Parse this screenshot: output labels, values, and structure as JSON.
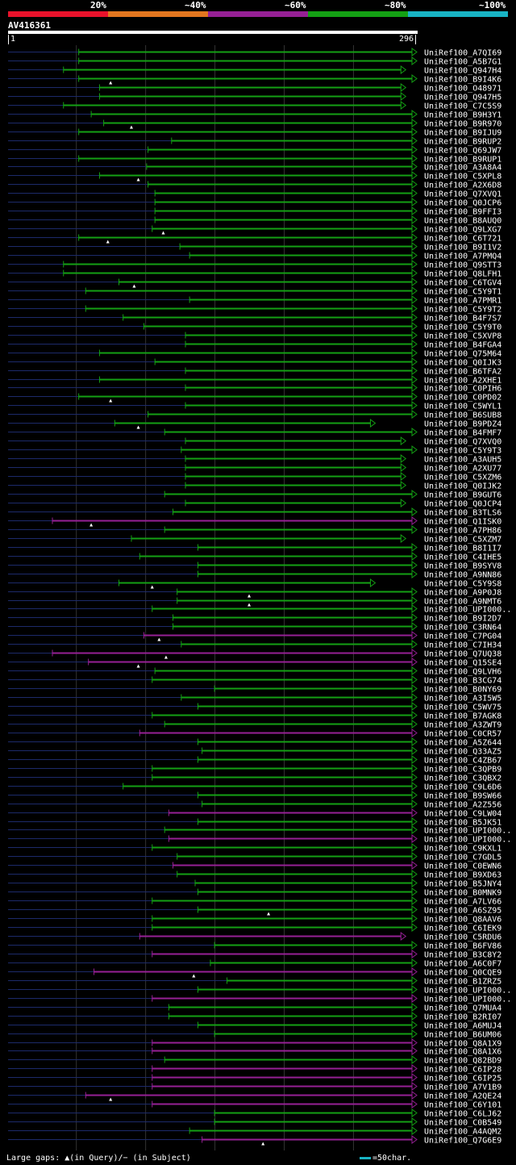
{
  "legend": {
    "labels": [
      "20%",
      "~40%",
      "~60%",
      "~80%",
      "~100%"
    ],
    "colors": [
      "#e8122b",
      "#e2761f",
      "#962095",
      "#14a014",
      "#18b3c4"
    ]
  },
  "query": {
    "id": "AV416361",
    "start": "1",
    "end": "296"
  },
  "footer": {
    "gaps_text": "Large gaps: ▲(in Query)/− (in Subject)",
    "scale_text": "=50char."
  },
  "chart_data": {
    "type": "alignment",
    "title": "AV416361",
    "query_length": 296,
    "axis": {
      "min": 1,
      "max": 296
    },
    "alignments": [
      {
        "name": "UniRef100_A7QI69",
        "start": 52,
        "end": 296,
        "color": "green",
        "arrow": "right"
      },
      {
        "name": "UniRef100_A5B7G1",
        "start": 52,
        "end": 296,
        "color": "green",
        "arrow": "right"
      },
      {
        "name": "UniRef100_Q947H4",
        "start": 41,
        "end": 288,
        "color": "green",
        "arrow": "right"
      },
      {
        "name": "UniRef100_B9I4K6",
        "start": 52,
        "end": 296,
        "color": "green",
        "arrow": "right",
        "gap": 75
      },
      {
        "name": "UniRef100_O48971",
        "start": 67,
        "end": 288,
        "color": "green",
        "arrow": "right"
      },
      {
        "name": "UniRef100_Q947H5",
        "start": 67,
        "end": 288,
        "color": "green",
        "arrow": "right"
      },
      {
        "name": "UniRef100_C7C5S9",
        "start": 41,
        "end": 288,
        "color": "green",
        "arrow": "right"
      },
      {
        "name": "UniRef100_B9H3Y1",
        "start": 61,
        "end": 296,
        "color": "green",
        "arrow": "right"
      },
      {
        "name": "UniRef100_B9R970",
        "start": 70,
        "end": 296,
        "color": "green",
        "arrow": "right",
        "gap": 90
      },
      {
        "name": "UniRef100_B9IJU9",
        "start": 52,
        "end": 296,
        "color": "green",
        "arrow": "right"
      },
      {
        "name": "UniRef100_B9RUP2",
        "start": 119,
        "end": 296,
        "color": "green",
        "arrow": "right"
      },
      {
        "name": "UniRef100_Q69JW7",
        "start": 102,
        "end": 296,
        "color": "green",
        "arrow": "right"
      },
      {
        "name": "UniRef100_B9RUP1",
        "start": 52,
        "end": 296,
        "color": "green",
        "arrow": "right"
      },
      {
        "name": "UniRef100_A3A8A4",
        "start": 101,
        "end": 296,
        "color": "green",
        "arrow": "right"
      },
      {
        "name": "UniRef100_C5XPL8",
        "start": 67,
        "end": 296,
        "color": "green",
        "arrow": "right",
        "gap": 95
      },
      {
        "name": "UniRef100_A2X6D8",
        "start": 102,
        "end": 296,
        "color": "green",
        "arrow": "right"
      },
      {
        "name": "UniRef100_Q7XVQ1",
        "start": 107,
        "end": 296,
        "color": "green",
        "arrow": "right"
      },
      {
        "name": "UniRef100_Q0JCP6",
        "start": 107,
        "end": 296,
        "color": "green",
        "arrow": "right"
      },
      {
        "name": "UniRef100_B9FFI3",
        "start": 107,
        "end": 296,
        "color": "green",
        "arrow": "right"
      },
      {
        "name": "UniRef100_B8AUQ0",
        "start": 107,
        "end": 296,
        "color": "green",
        "arrow": "right"
      },
      {
        "name": "UniRef100_Q9LXG7",
        "start": 105,
        "end": 296,
        "color": "green",
        "arrow": "right",
        "gap": 113
      },
      {
        "name": "UniRef100_C6T721",
        "start": 52,
        "end": 296,
        "color": "green",
        "arrow": "right",
        "gap": 73
      },
      {
        "name": "UniRef100_B9I1V2",
        "start": 125,
        "end": 296,
        "color": "green",
        "arrow": "right"
      },
      {
        "name": "UniRef100_A7PMQ4",
        "start": 132,
        "end": 296,
        "color": "green",
        "arrow": "right"
      },
      {
        "name": "UniRef100_Q9STT3",
        "start": 41,
        "end": 296,
        "color": "green",
        "arrow": "right"
      },
      {
        "name": "UniRef100_Q8LFH1",
        "start": 41,
        "end": 296,
        "color": "green",
        "arrow": "right"
      },
      {
        "name": "UniRef100_C6TGV4",
        "start": 81,
        "end": 296,
        "color": "green",
        "arrow": "right",
        "gap": 92
      },
      {
        "name": "UniRef100_C5Y9T1",
        "start": 57,
        "end": 296,
        "color": "green",
        "arrow": "right"
      },
      {
        "name": "UniRef100_A7PMR1",
        "start": 132,
        "end": 296,
        "color": "green",
        "arrow": "right"
      },
      {
        "name": "UniRef100_C5Y9T2",
        "start": 57,
        "end": 296,
        "color": "green",
        "arrow": "right"
      },
      {
        "name": "UniRef100_B4F7S7",
        "start": 84,
        "end": 296,
        "color": "green",
        "arrow": "right"
      },
      {
        "name": "UniRef100_C5Y9T0",
        "start": 99,
        "end": 296,
        "color": "green",
        "arrow": "right"
      },
      {
        "name": "UniRef100_C5XVP8",
        "start": 129,
        "end": 296,
        "color": "green",
        "arrow": "right"
      },
      {
        "name": "UniRef100_B4FGA4",
        "start": 129,
        "end": 296,
        "color": "green",
        "arrow": "right"
      },
      {
        "name": "UniRef100_Q75M64",
        "start": 67,
        "end": 296,
        "color": "green",
        "arrow": "right"
      },
      {
        "name": "UniRef100_Q0IJK3",
        "start": 107,
        "end": 296,
        "color": "green",
        "arrow": "right"
      },
      {
        "name": "UniRef100_B6TFA2",
        "start": 129,
        "end": 296,
        "color": "green",
        "arrow": "right"
      },
      {
        "name": "UniRef100_A2XHE1",
        "start": 67,
        "end": 296,
        "color": "green",
        "arrow": "right"
      },
      {
        "name": "UniRef100_C0PIH6",
        "start": 129,
        "end": 296,
        "color": "green",
        "arrow": "right"
      },
      {
        "name": "UniRef100_C0PD02",
        "start": 52,
        "end": 296,
        "color": "green",
        "arrow": "right",
        "gap": 75
      },
      {
        "name": "UniRef100_C5WYL1",
        "start": 129,
        "end": 296,
        "color": "green",
        "arrow": "right"
      },
      {
        "name": "UniRef100_B6SUB8",
        "start": 102,
        "end": 296,
        "color": "green",
        "arrow": "right"
      },
      {
        "name": "UniRef100_B9PDZ4",
        "start": 78,
        "end": 266,
        "color": "green",
        "arrow": "right",
        "gap": 95
      },
      {
        "name": "UniRef100_B4FMF7",
        "start": 114,
        "end": 296,
        "color": "green",
        "arrow": "right"
      },
      {
        "name": "UniRef100_Q7XVQ0",
        "start": 129,
        "end": 288,
        "color": "green",
        "arrow": "right"
      },
      {
        "name": "UniRef100_C5Y9T3",
        "start": 126,
        "end": 296,
        "color": "green",
        "arrow": "right"
      },
      {
        "name": "UniRef100_A3AUH5",
        "start": 129,
        "end": 288,
        "color": "green",
        "arrow": "right"
      },
      {
        "name": "UniRef100_A2XU77",
        "start": 129,
        "end": 288,
        "color": "green",
        "arrow": "right"
      },
      {
        "name": "UniRef100_C5XZM6",
        "start": 129,
        "end": 288,
        "color": "green",
        "arrow": "right"
      },
      {
        "name": "UniRef100_Q0IJK2",
        "start": 129,
        "end": 288,
        "color": "green",
        "arrow": "right"
      },
      {
        "name": "UniRef100_B9GUT6",
        "start": 114,
        "end": 296,
        "color": "green",
        "arrow": "right"
      },
      {
        "name": "UniRef100_Q0JCP4",
        "start": 129,
        "end": 288,
        "color": "green",
        "arrow": "right"
      },
      {
        "name": "UniRef100_B3TLS6",
        "start": 120,
        "end": 296,
        "color": "green",
        "arrow": "right"
      },
      {
        "name": "UniRef100_Q1ISK0",
        "start": 33,
        "end": 296,
        "color": "purple",
        "arrow": "right",
        "gap": 61
      },
      {
        "name": "UniRef100_A7PH86",
        "start": 114,
        "end": 296,
        "color": "green",
        "arrow": "right"
      },
      {
        "name": "UniRef100_C5XZM7",
        "start": 90,
        "end": 288,
        "color": "green",
        "arrow": "right"
      },
      {
        "name": "UniRef100_B8I1I7",
        "start": 138,
        "end": 296,
        "color": "green",
        "arrow": "right"
      },
      {
        "name": "UniRef100_C4IHE5",
        "start": 96,
        "end": 296,
        "color": "green",
        "arrow": "right"
      },
      {
        "name": "UniRef100_B9SYV8",
        "start": 138,
        "end": 296,
        "color": "green",
        "arrow": "right"
      },
      {
        "name": "UniRef100_A9NN86",
        "start": 138,
        "end": 296,
        "color": "green",
        "arrow": "right"
      },
      {
        "name": "UniRef100_C5Y9S8",
        "start": 81,
        "end": 266,
        "color": "green",
        "arrow": "right",
        "gap": 105
      },
      {
        "name": "UniRef100_A9P0J8",
        "start": 123,
        "end": 296,
        "color": "green",
        "arrow": "right",
        "gap": 175
      },
      {
        "name": "UniRef100_A9NMT6",
        "start": 123,
        "end": 296,
        "color": "green",
        "arrow": "right",
        "gap": 175
      },
      {
        "name": "UniRef100_UPI000..",
        "start": 105,
        "end": 296,
        "color": "green",
        "arrow": "right"
      },
      {
        "name": "UniRef100_B9I2D7",
        "start": 120,
        "end": 296,
        "color": "green",
        "arrow": "right"
      },
      {
        "name": "UniRef100_C3RN64",
        "start": 120,
        "end": 296,
        "color": "green",
        "arrow": "right"
      },
      {
        "name": "UniRef100_C7PG04",
        "start": 99,
        "end": 296,
        "color": "purple",
        "arrow": "right",
        "gap": 110
      },
      {
        "name": "UniRef100_C7IH34",
        "start": 126,
        "end": 296,
        "color": "green",
        "arrow": "right"
      },
      {
        "name": "UniRef100_Q7UQ38",
        "start": 33,
        "end": 296,
        "color": "purple",
        "arrow": "right",
        "gap": 115
      },
      {
        "name": "UniRef100_Q15SE4",
        "start": 59,
        "end": 296,
        "color": "purple",
        "arrow": "right",
        "gap": 95
      },
      {
        "name": "UniRef100_Q9LVH6",
        "start": 107,
        "end": 296,
        "color": "green",
        "arrow": "right"
      },
      {
        "name": "UniRef100_B3CG74",
        "start": 105,
        "end": 296,
        "color": "green",
        "arrow": "right"
      },
      {
        "name": "UniRef100_B0NY69",
        "start": 150,
        "end": 296,
        "color": "green",
        "arrow": "right"
      },
      {
        "name": "UniRef100_A3I5W5",
        "start": 126,
        "end": 296,
        "color": "green",
        "arrow": "right"
      },
      {
        "name": "UniRef100_C5WV75",
        "start": 138,
        "end": 296,
        "color": "green",
        "arrow": "right"
      },
      {
        "name": "UniRef100_B7AGK8",
        "start": 105,
        "end": 296,
        "color": "green",
        "arrow": "right"
      },
      {
        "name": "UniRef100_A3ZWT9",
        "start": 114,
        "end": 296,
        "color": "green",
        "arrow": "right"
      },
      {
        "name": "UniRef100_C0CR57",
        "start": 96,
        "end": 296,
        "color": "purple",
        "arrow": "right"
      },
      {
        "name": "UniRef100_A5Z644",
        "start": 138,
        "end": 296,
        "color": "green",
        "arrow": "right"
      },
      {
        "name": "UniRef100_Q33AZ5",
        "start": 141,
        "end": 296,
        "color": "green",
        "arrow": "right"
      },
      {
        "name": "UniRef100_C4ZB67",
        "start": 138,
        "end": 296,
        "color": "green",
        "arrow": "right"
      },
      {
        "name": "UniRef100_C3QPB9",
        "start": 105,
        "end": 296,
        "color": "green",
        "arrow": "right"
      },
      {
        "name": "UniRef100_C3QBX2",
        "start": 105,
        "end": 296,
        "color": "green",
        "arrow": "right"
      },
      {
        "name": "UniRef100_C9L6D6",
        "start": 84,
        "end": 296,
        "color": "green",
        "arrow": "right"
      },
      {
        "name": "UniRef100_B9SW66",
        "start": 138,
        "end": 296,
        "color": "green",
        "arrow": "right"
      },
      {
        "name": "UniRef100_A2Z556",
        "start": 141,
        "end": 296,
        "color": "green",
        "arrow": "right"
      },
      {
        "name": "UniRef100_C9LW04",
        "start": 117,
        "end": 296,
        "color": "purple",
        "arrow": "right"
      },
      {
        "name": "UniRef100_B5JK51",
        "start": 138,
        "end": 296,
        "color": "green",
        "arrow": "right"
      },
      {
        "name": "UniRef100_UPI000..",
        "start": 114,
        "end": 296,
        "color": "green",
        "arrow": "right"
      },
      {
        "name": "UniRef100_UPI000..",
        "start": 117,
        "end": 296,
        "color": "purple",
        "arrow": "right"
      },
      {
        "name": "UniRef100_C9KXL1",
        "start": 105,
        "end": 296,
        "color": "green",
        "arrow": "right"
      },
      {
        "name": "UniRef100_C7GDL5",
        "start": 123,
        "end": 296,
        "color": "green",
        "arrow": "right"
      },
      {
        "name": "UniRef100_C0EWN6",
        "start": 120,
        "end": 296,
        "color": "purple",
        "arrow": "right"
      },
      {
        "name": "UniRef100_B9XD63",
        "start": 123,
        "end": 296,
        "color": "green",
        "arrow": "right"
      },
      {
        "name": "UniRef100_B5JNY4",
        "start": 136,
        "end": 296,
        "color": "green",
        "arrow": "right"
      },
      {
        "name": "UniRef100_B0MNK9",
        "start": 138,
        "end": 296,
        "color": "green",
        "arrow": "right"
      },
      {
        "name": "UniRef100_A7LV66",
        "start": 105,
        "end": 296,
        "color": "green",
        "arrow": "right"
      },
      {
        "name": "UniRef100_A6SZ95",
        "start": 138,
        "end": 296,
        "color": "green",
        "arrow": "right",
        "gap": 189
      },
      {
        "name": "UniRef100_Q8AAV6",
        "start": 105,
        "end": 296,
        "color": "green",
        "arrow": "right"
      },
      {
        "name": "UniRef100_C6IEK9",
        "start": 105,
        "end": 296,
        "color": "green",
        "arrow": "right"
      },
      {
        "name": "UniRef100_C5RDU6",
        "start": 96,
        "end": 288,
        "color": "purple",
        "arrow": "right"
      },
      {
        "name": "UniRef100_B6FV86",
        "start": 150,
        "end": 296,
        "color": "green",
        "arrow": "right"
      },
      {
        "name": "UniRef100_B3C8Y2",
        "start": 105,
        "end": 296,
        "color": "purple",
        "arrow": "right"
      },
      {
        "name": "UniRef100_A6C0F7",
        "start": 147,
        "end": 296,
        "color": "green",
        "arrow": "right"
      },
      {
        "name": "UniRef100_Q0CQE9",
        "start": 63,
        "end": 296,
        "color": "purple",
        "arrow": "right",
        "gap": 135
      },
      {
        "name": "UniRef100_B1ZRZ5",
        "start": 159,
        "end": 296,
        "color": "green",
        "arrow": "right"
      },
      {
        "name": "UniRef100_UPI000..",
        "start": 138,
        "end": 296,
        "color": "green",
        "arrow": "right"
      },
      {
        "name": "UniRef100_UPI000..",
        "start": 105,
        "end": 296,
        "color": "purple",
        "arrow": "right"
      },
      {
        "name": "UniRef100_Q7MUA4",
        "start": 117,
        "end": 296,
        "color": "green",
        "arrow": "right"
      },
      {
        "name": "UniRef100_B2RI07",
        "start": 117,
        "end": 296,
        "color": "green",
        "arrow": "right"
      },
      {
        "name": "UniRef100_A6MUJ4",
        "start": 138,
        "end": 296,
        "color": "green",
        "arrow": "right"
      },
      {
        "name": "UniRef100_B6UM06",
        "start": 150,
        "end": 296,
        "color": "green",
        "arrow": "right"
      },
      {
        "name": "UniRef100_Q8A1X9",
        "start": 105,
        "end": 296,
        "color": "purple",
        "arrow": "right"
      },
      {
        "name": "UniRef100_Q8A1X6",
        "start": 105,
        "end": 296,
        "color": "purple",
        "arrow": "right"
      },
      {
        "name": "UniRef100_Q82BD9",
        "start": 114,
        "end": 296,
        "color": "green",
        "arrow": "right"
      },
      {
        "name": "UniRef100_C6IP28",
        "start": 105,
        "end": 296,
        "color": "purple",
        "arrow": "right"
      },
      {
        "name": "UniRef100_C6IP25",
        "start": 105,
        "end": 296,
        "color": "purple",
        "arrow": "right"
      },
      {
        "name": "UniRef100_A7V1B9",
        "start": 105,
        "end": 296,
        "color": "purple",
        "arrow": "right"
      },
      {
        "name": "UniRef100_A2QE24",
        "start": 57,
        "end": 296,
        "color": "purple",
        "arrow": "right",
        "gap": 75
      },
      {
        "name": "UniRef100_C6Y101",
        "start": 105,
        "end": 296,
        "color": "purple",
        "arrow": "right"
      },
      {
        "name": "UniRef100_C6LJ62",
        "start": 150,
        "end": 296,
        "color": "green",
        "arrow": "right"
      },
      {
        "name": "UniRef100_C0B549",
        "start": 150,
        "end": 296,
        "color": "green",
        "arrow": "right"
      },
      {
        "name": "UniRef100_A4AQM2",
        "start": 132,
        "end": 296,
        "color": "green",
        "arrow": "right"
      },
      {
        "name": "UniRef100_Q7G6E9",
        "start": 141,
        "end": 296,
        "color": "purple",
        "arrow": "right",
        "gap": 185
      }
    ]
  }
}
